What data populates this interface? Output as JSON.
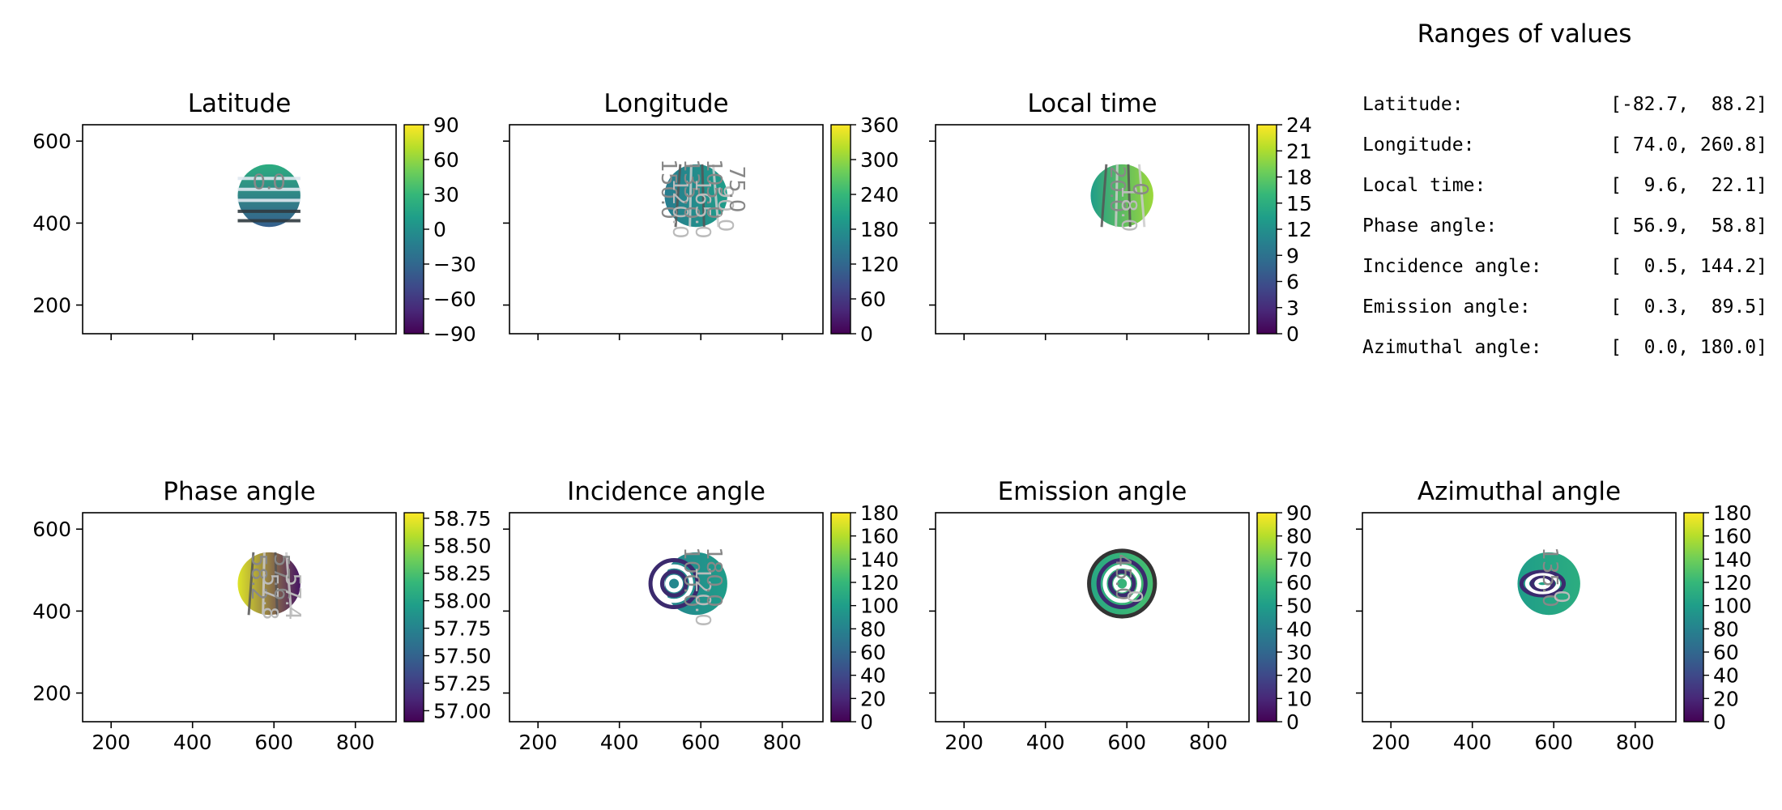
{
  "ranges": {
    "title": "Ranges of values",
    "rows": [
      {
        "label": "Latitude:",
        "value": "[-82.7,  88.2]"
      },
      {
        "label": "Longitude:",
        "value": "[ 74.0, 260.8]"
      },
      {
        "label": "Local time:",
        "value": "[  9.6,  22.1]"
      },
      {
        "label": "Phase angle:",
        "value": "[ 56.9,  58.8]"
      },
      {
        "label": "Incidence angle:",
        "value": "[  0.5, 144.2]"
      },
      {
        "label": "Emission angle:",
        "value": "[  0.3,  89.5]"
      },
      {
        "label": "Azimuthal angle:",
        "value": "[  0.0, 180.0]"
      }
    ]
  },
  "colormap": "viridis",
  "chart_data": [
    {
      "type": "heatmap",
      "title": "Latitude",
      "xlim": [
        130,
        900
      ],
      "ylim": [
        130,
        640
      ],
      "xticks": [
        200,
        400,
        600,
        800
      ],
      "xtick_labels_shown": false,
      "yticks": [
        200,
        400,
        600
      ],
      "ytick_labels": [
        "200",
        "400",
        "600"
      ],
      "colorbar": {
        "range": [
          -90,
          90
        ],
        "ticks": [
          "−90",
          "−60",
          "−30",
          "0",
          "30",
          "60",
          "90"
        ]
      },
      "disc": {
        "center": [
          588,
          467
        ],
        "radius": 77
      },
      "contour_labels": [
        "0.0"
      ]
    },
    {
      "type": "heatmap",
      "title": "Longitude",
      "xlim": [
        130,
        900
      ],
      "ylim": [
        130,
        640
      ],
      "xticks": [
        200,
        400,
        600,
        800
      ],
      "xtick_labels_shown": false,
      "yticks": [
        200,
        400,
        600
      ],
      "ytick_labels_shown": false,
      "colorbar": {
        "range": [
          0,
          360
        ],
        "ticks": [
          "0",
          "60",
          "120",
          "180",
          "240",
          "300",
          "360"
        ]
      },
      "disc": {
        "center": [
          588,
          467
        ],
        "radius": 77
      },
      "contour_labels": [
        "150.0",
        "120.0",
        "135.0",
        "165.0",
        "105.0",
        "90.0",
        "75.0"
      ]
    },
    {
      "type": "heatmap",
      "title": "Local time",
      "xlim": [
        130,
        900
      ],
      "ylim": [
        130,
        640
      ],
      "xticks": [
        200,
        400,
        600,
        800
      ],
      "xtick_labels_shown": false,
      "yticks": [
        200,
        400,
        600
      ],
      "ytick_labels_shown": false,
      "colorbar": {
        "range": [
          0,
          24
        ],
        "ticks": [
          "0",
          "3",
          "6",
          "9",
          "12",
          "15",
          "18",
          "21",
          "24"
        ]
      },
      "disc": {
        "center": [
          588,
          467
        ],
        "radius": 77
      },
      "contour_labels": [
        "20.0",
        "18.0",
        "0"
      ]
    },
    {
      "type": "heatmap",
      "title": "Phase angle",
      "xlim": [
        130,
        900
      ],
      "ylim": [
        130,
        640
      ],
      "xticks": [
        200,
        400,
        600,
        800
      ],
      "xtick_labels": [
        "200",
        "400",
        "600",
        "800"
      ],
      "yticks": [
        200,
        400,
        600
      ],
      "ytick_labels": [
        "200",
        "400",
        "600"
      ],
      "colorbar": {
        "range": [
          56.9,
          58.8
        ],
        "ticks": [
          "57.00",
          "57.25",
          "57.50",
          "57.75",
          "58.00",
          "58.25",
          "58.50",
          "58.75"
        ]
      },
      "disc": {
        "center": [
          588,
          467
        ],
        "radius": 77
      },
      "contour_labels": [
        "58.2",
        "57.8",
        "57.6",
        "57.4"
      ]
    },
    {
      "type": "heatmap",
      "title": "Incidence angle",
      "xlim": [
        130,
        900
      ],
      "ylim": [
        130,
        640
      ],
      "xticks": [
        200,
        400,
        600,
        800
      ],
      "xtick_labels": [
        "200",
        "400",
        "600",
        "800"
      ],
      "yticks": [
        200,
        400,
        600
      ],
      "ytick_labels_shown": false,
      "colorbar": {
        "range": [
          0,
          180
        ],
        "ticks": [
          "0",
          "20",
          "40",
          "60",
          "80",
          "100",
          "120",
          "140",
          "160",
          "180"
        ]
      },
      "disc": {
        "center": [
          588,
          467
        ],
        "radius": 77
      },
      "contour_labels": [
        "100.0",
        "120.0",
        "180.0"
      ]
    },
    {
      "type": "heatmap",
      "title": "Emission angle",
      "xlim": [
        130,
        900
      ],
      "ylim": [
        130,
        640
      ],
      "xticks": [
        200,
        400,
        600,
        800
      ],
      "xtick_labels": [
        "200",
        "400",
        "600",
        "800"
      ],
      "yticks": [
        200,
        400,
        600
      ],
      "ytick_labels_shown": false,
      "colorbar": {
        "range": [
          0,
          90
        ],
        "ticks": [
          "0",
          "10",
          "20",
          "30",
          "40",
          "50",
          "60",
          "70",
          "80",
          "90"
        ]
      },
      "disc": {
        "center": [
          588,
          467
        ],
        "radius": 77
      },
      "contour_labels": [
        "45.0",
        "0"
      ]
    },
    {
      "type": "heatmap",
      "title": "Azimuthal angle",
      "xlim": [
        130,
        900
      ],
      "ylim": [
        130,
        640
      ],
      "xticks": [
        200,
        400,
        600,
        800
      ],
      "xtick_labels": [
        "200",
        "400",
        "600",
        "800"
      ],
      "yticks": [
        200,
        400,
        600
      ],
      "ytick_labels_shown": false,
      "colorbar": {
        "range": [
          0,
          180
        ],
        "ticks": [
          "0",
          "20",
          "40",
          "60",
          "80",
          "100",
          "120",
          "140",
          "160",
          "180"
        ]
      },
      "disc": {
        "center": [
          588,
          467
        ],
        "radius": 77
      },
      "contour_labels": [
        "135.0",
        "0"
      ]
    }
  ]
}
